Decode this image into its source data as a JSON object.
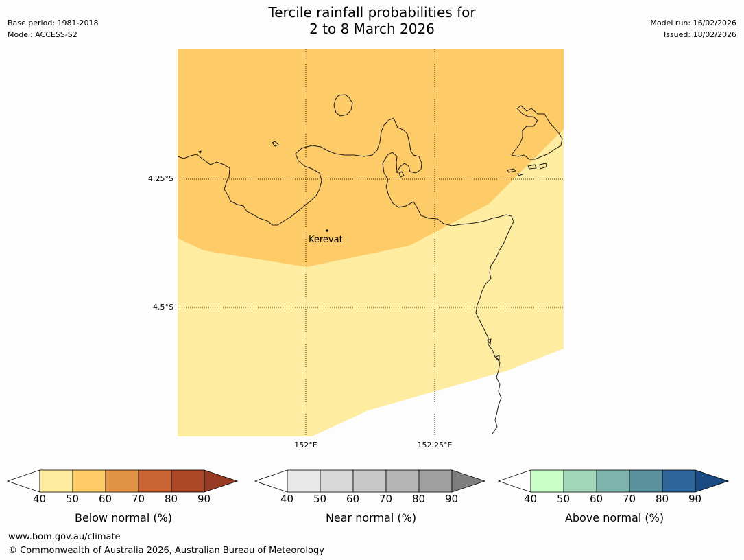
{
  "title": {
    "line1": "Tercile rainfall probabilities for",
    "line2": "2 to 8 March 2026"
  },
  "meta_left": {
    "base_period": "Base period: 1981-2018",
    "model": "Model: ACCESS-S2"
  },
  "meta_right": {
    "model_run": "Model run: 16/02/2026",
    "issued": "Issued: 18/02/2026"
  },
  "map": {
    "lat_labels": [
      "4.25°S",
      "4.5°S"
    ],
    "lon_labels": [
      "152°E",
      "152.25°E"
    ],
    "place": "Kerevat",
    "colors": {
      "below_50_60": "#fecb69",
      "below_40_50": "#feeca0",
      "coast": "#1a1a1a"
    }
  },
  "colorbars": [
    {
      "title": "Below normal (%)",
      "ticks": [
        "40",
        "50",
        "60",
        "70",
        "80",
        "90"
      ],
      "low_ext": "#ffffff",
      "colors": [
        "#feeca0",
        "#fecb69",
        "#e29446",
        "#ca6333",
        "#ab4827"
      ],
      "high_ext": "#983b24"
    },
    {
      "title": "Near normal (%)",
      "ticks": [
        "40",
        "50",
        "60",
        "70",
        "80",
        "90"
      ],
      "low_ext": "#ffffff",
      "colors": [
        "#e9e9e9",
        "#d9d9d9",
        "#c8c8c8",
        "#b4b4b4",
        "#9f9f9f"
      ],
      "high_ext": "#7f7f7f"
    },
    {
      "title": "Above normal (%)",
      "ticks": [
        "40",
        "50",
        "60",
        "70",
        "80",
        "90"
      ],
      "low_ext": "#ffffff",
      "colors": [
        "#c8fec8",
        "#a2d8b9",
        "#7fb3ad",
        "#5b909d",
        "#2f6598"
      ],
      "high_ext": "#1a4b82"
    }
  ],
  "footer": {
    "url": "www.bom.gov.au/climate",
    "copyright": "© Commonwealth of Australia 2026, Australian Bureau of Meteorology"
  }
}
